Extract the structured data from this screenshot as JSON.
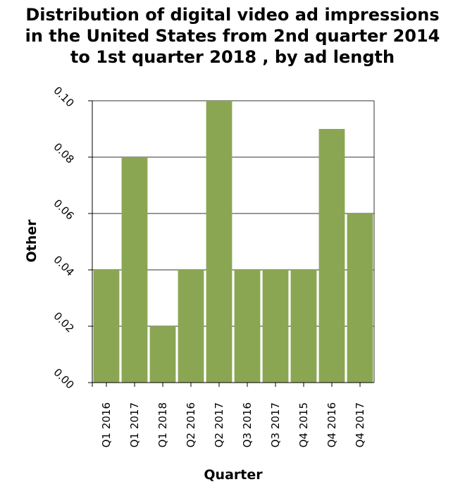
{
  "chart_data": {
    "type": "bar",
    "title_lines": [
      "Distribution of digital video ad impressions",
      "in the United States from 2nd quarter 2014",
      "to 1st quarter 2018 , by ad length"
    ],
    "xlabel": "Quarter",
    "ylabel": "Other",
    "categories": [
      "Q1 2016",
      "Q1 2017",
      "Q1 2018",
      "Q2 2016",
      "Q2 2017",
      "Q3 2016",
      "Q3 2017",
      "Q4 2015",
      "Q4 2016",
      "Q4 2017"
    ],
    "values": [
      0.04,
      0.08,
      0.02,
      0.04,
      0.1,
      0.04,
      0.04,
      0.04,
      0.09,
      0.06
    ],
    "ylim": [
      0,
      0.1
    ],
    "yticks": [
      "0.00",
      "0.02",
      "0.04",
      "0.06",
      "0.08",
      "0.10"
    ],
    "grid": true,
    "bar_color": "#8aa653",
    "grid_color": "#333333"
  }
}
